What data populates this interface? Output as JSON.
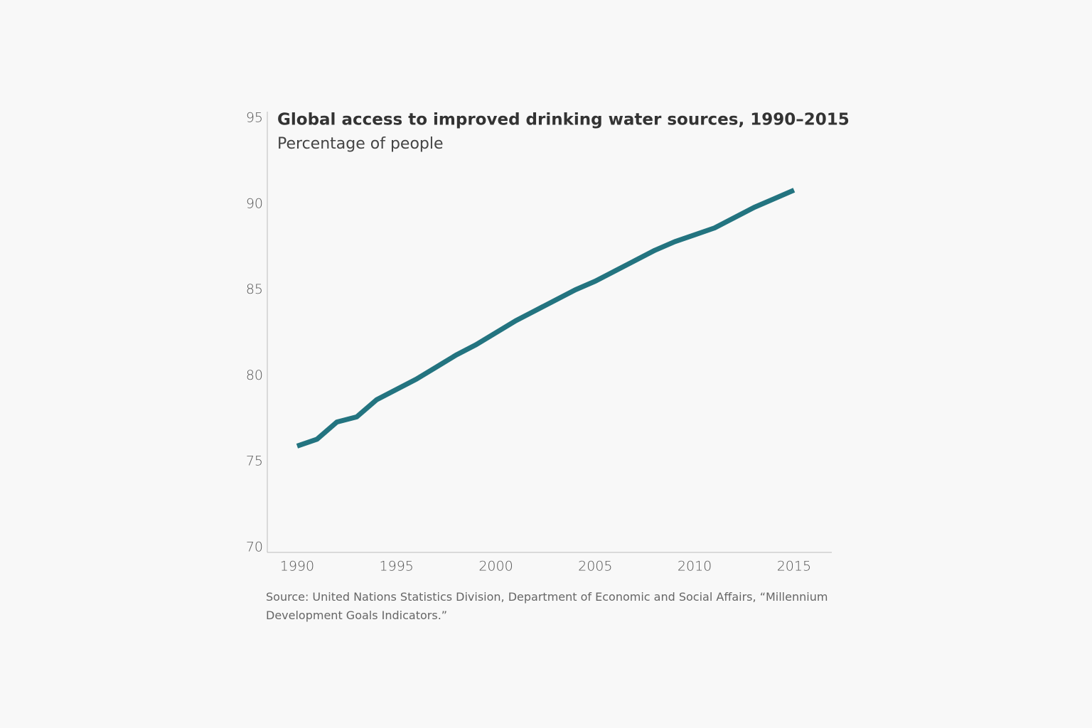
{
  "chart_data": {
    "type": "line",
    "title": "Global access to improved drinking water sources, 1990–2015",
    "subtitle": "Percentage of people",
    "source": "Source: United Nations Statistics Division, Department of Economic and Social Affairs, “Millennium Development Goals Indicators.”",
    "x": [
      1990,
      1991,
      1992,
      1993,
      1994,
      1995,
      1996,
      1997,
      1998,
      1999,
      2000,
      2001,
      2002,
      2003,
      2004,
      2005,
      2006,
      2007,
      2008,
      2009,
      2010,
      2011,
      2012,
      2013,
      2014,
      2015
    ],
    "series": [
      {
        "color": "#237480",
        "values": [
          75.9,
          76.3,
          77.3,
          77.6,
          78.6,
          79.2,
          79.8,
          80.5,
          81.2,
          81.8,
          82.5,
          83.2,
          83.8,
          84.4,
          85.0,
          85.5,
          86.1,
          86.7,
          87.3,
          87.8,
          88.2,
          88.6,
          89.2,
          89.8,
          90.3,
          90.8
        ]
      }
    ],
    "xlim": [
      1988.5,
      2016.9
    ],
    "xticks": [
      1990,
      1995,
      2000,
      2005,
      2010,
      2015
    ],
    "ylim": [
      70,
      95
    ],
    "yticks": [
      70,
      75,
      80,
      85,
      90,
      95
    ]
  }
}
